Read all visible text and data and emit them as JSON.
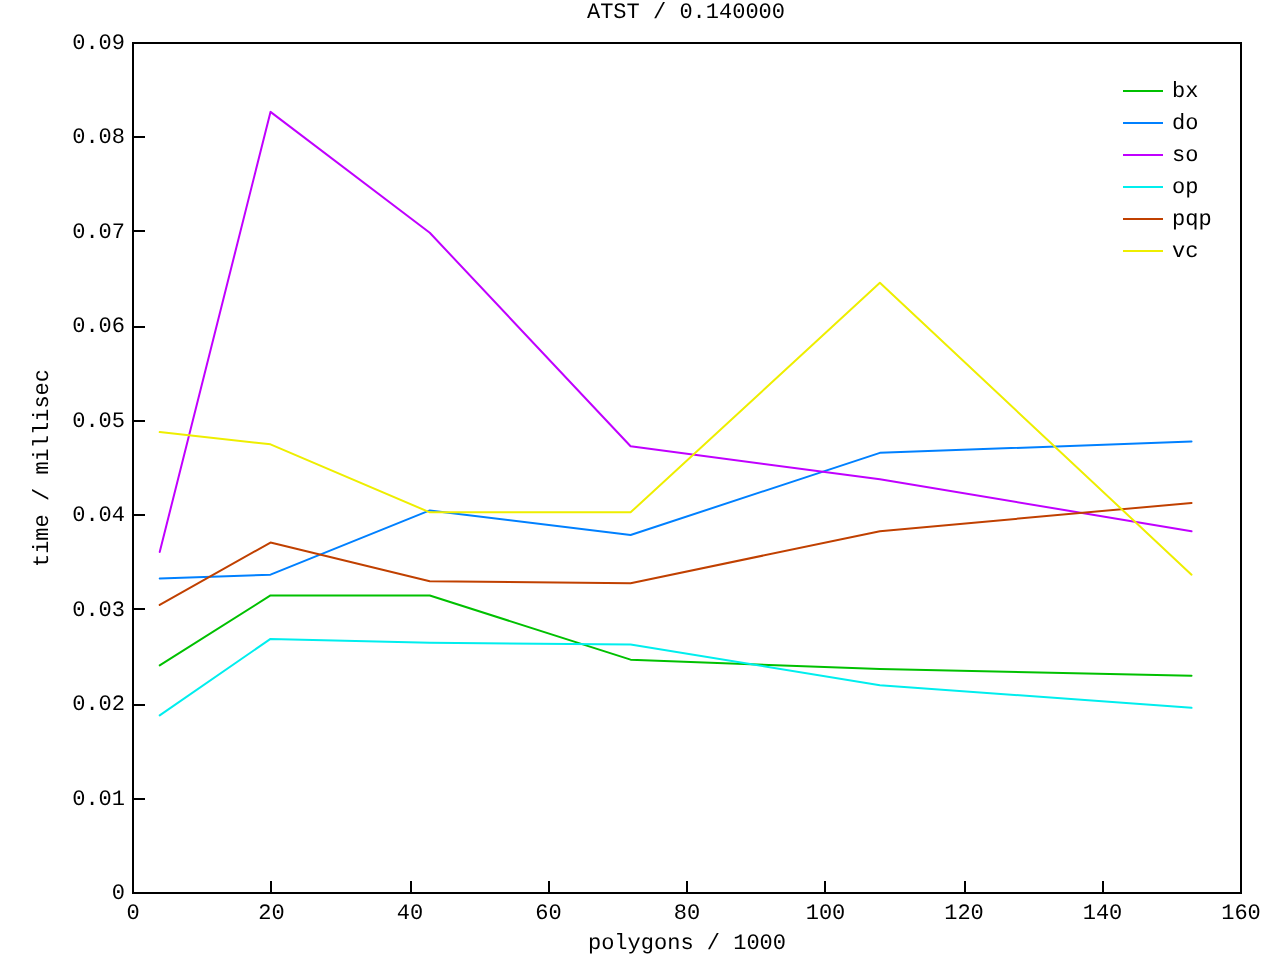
{
  "chart_data": {
    "type": "line",
    "title": "ATST / 0.140000",
    "xlabel": "polygons / 1000",
    "ylabel": "time / millisec",
    "x": [
      4,
      20,
      43,
      72,
      108,
      153
    ],
    "series": [
      {
        "name": "bx",
        "color": "#00c000",
        "values": [
          0.024,
          0.0314,
          0.0314,
          0.0246,
          0.0236,
          0.0229
        ]
      },
      {
        "name": "do",
        "color": "#0080ff",
        "values": [
          0.0332,
          0.0336,
          0.0404,
          0.0378,
          0.0465,
          0.0477
        ]
      },
      {
        "name": "so",
        "color": "#c000ff",
        "values": [
          0.036,
          0.0826,
          0.0698,
          0.0472,
          0.0437,
          0.0382
        ]
      },
      {
        "name": "op",
        "color": "#00eeee",
        "values": [
          0.0187,
          0.0268,
          0.0264,
          0.0262,
          0.0219,
          0.0195
        ]
      },
      {
        "name": "pqp",
        "color": "#c04000",
        "values": [
          0.0304,
          0.037,
          0.0329,
          0.0327,
          0.0382,
          0.0412
        ]
      },
      {
        "name": "vc",
        "color": "#eeee00",
        "values": [
          0.0487,
          0.0474,
          0.0402,
          0.0402,
          0.0645,
          0.0336
        ]
      }
    ],
    "xlim": [
      0,
      160
    ],
    "xticks": [
      0,
      20,
      40,
      60,
      80,
      100,
      120,
      140,
      160
    ],
    "ylim": [
      0,
      0.09
    ],
    "yticks": [
      0,
      0.01,
      0.02,
      0.03,
      0.04,
      0.05,
      0.06,
      0.07,
      0.08,
      0.09
    ],
    "grid": false,
    "legend": "top right"
  }
}
